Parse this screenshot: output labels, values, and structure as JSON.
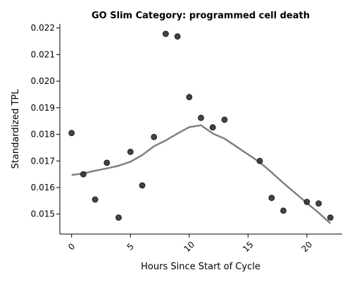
{
  "chart_data": {
    "type": "scatter",
    "title": "GO Slim Category: programmed cell death",
    "xlabel": "Hours Since Start of Cycle",
    "ylabel": "Standardized TPL",
    "xlim": [
      -1,
      23
    ],
    "ylim": [
      0.01425,
      0.02215
    ],
    "xticks": [
      0,
      5,
      10,
      15,
      20
    ],
    "yticks": [
      0.015,
      0.016,
      0.017,
      0.018,
      0.019,
      0.02,
      0.021,
      0.022
    ],
    "ytick_labels": [
      "0.015",
      "0.016",
      "0.017",
      "0.018",
      "0.019",
      "0.020",
      "0.021",
      "0.022"
    ],
    "xtick_rotation_deg": -45,
    "grid": false,
    "points": {
      "color": "#333333",
      "x": [
        0,
        1,
        2,
        3,
        4,
        5,
        6,
        7,
        8,
        9,
        10,
        11,
        12,
        13,
        16,
        17,
        18,
        20,
        21,
        22
      ],
      "y": [
        0.01805,
        0.0165,
        0.01555,
        0.01693,
        0.01487,
        0.01734,
        0.01608,
        0.0179,
        0.02178,
        0.02168,
        0.0194,
        0.01862,
        0.01826,
        0.01855,
        0.017,
        0.01561,
        0.01513,
        0.01546,
        0.0154,
        0.01487
      ]
    },
    "trend": {
      "color": "#808080",
      "x": [
        0,
        1,
        2,
        3,
        4,
        5,
        6,
        7,
        8,
        9,
        10,
        11,
        12,
        13,
        16,
        17,
        18,
        20,
        21,
        22
      ],
      "y": [
        0.01647,
        0.01653,
        0.01663,
        0.01672,
        0.01682,
        0.01697,
        0.01722,
        0.01755,
        0.01777,
        0.01803,
        0.01827,
        0.01834,
        0.01803,
        0.01784,
        0.01695,
        0.01657,
        0.01617,
        0.01542,
        0.01505,
        0.01465
      ]
    }
  }
}
